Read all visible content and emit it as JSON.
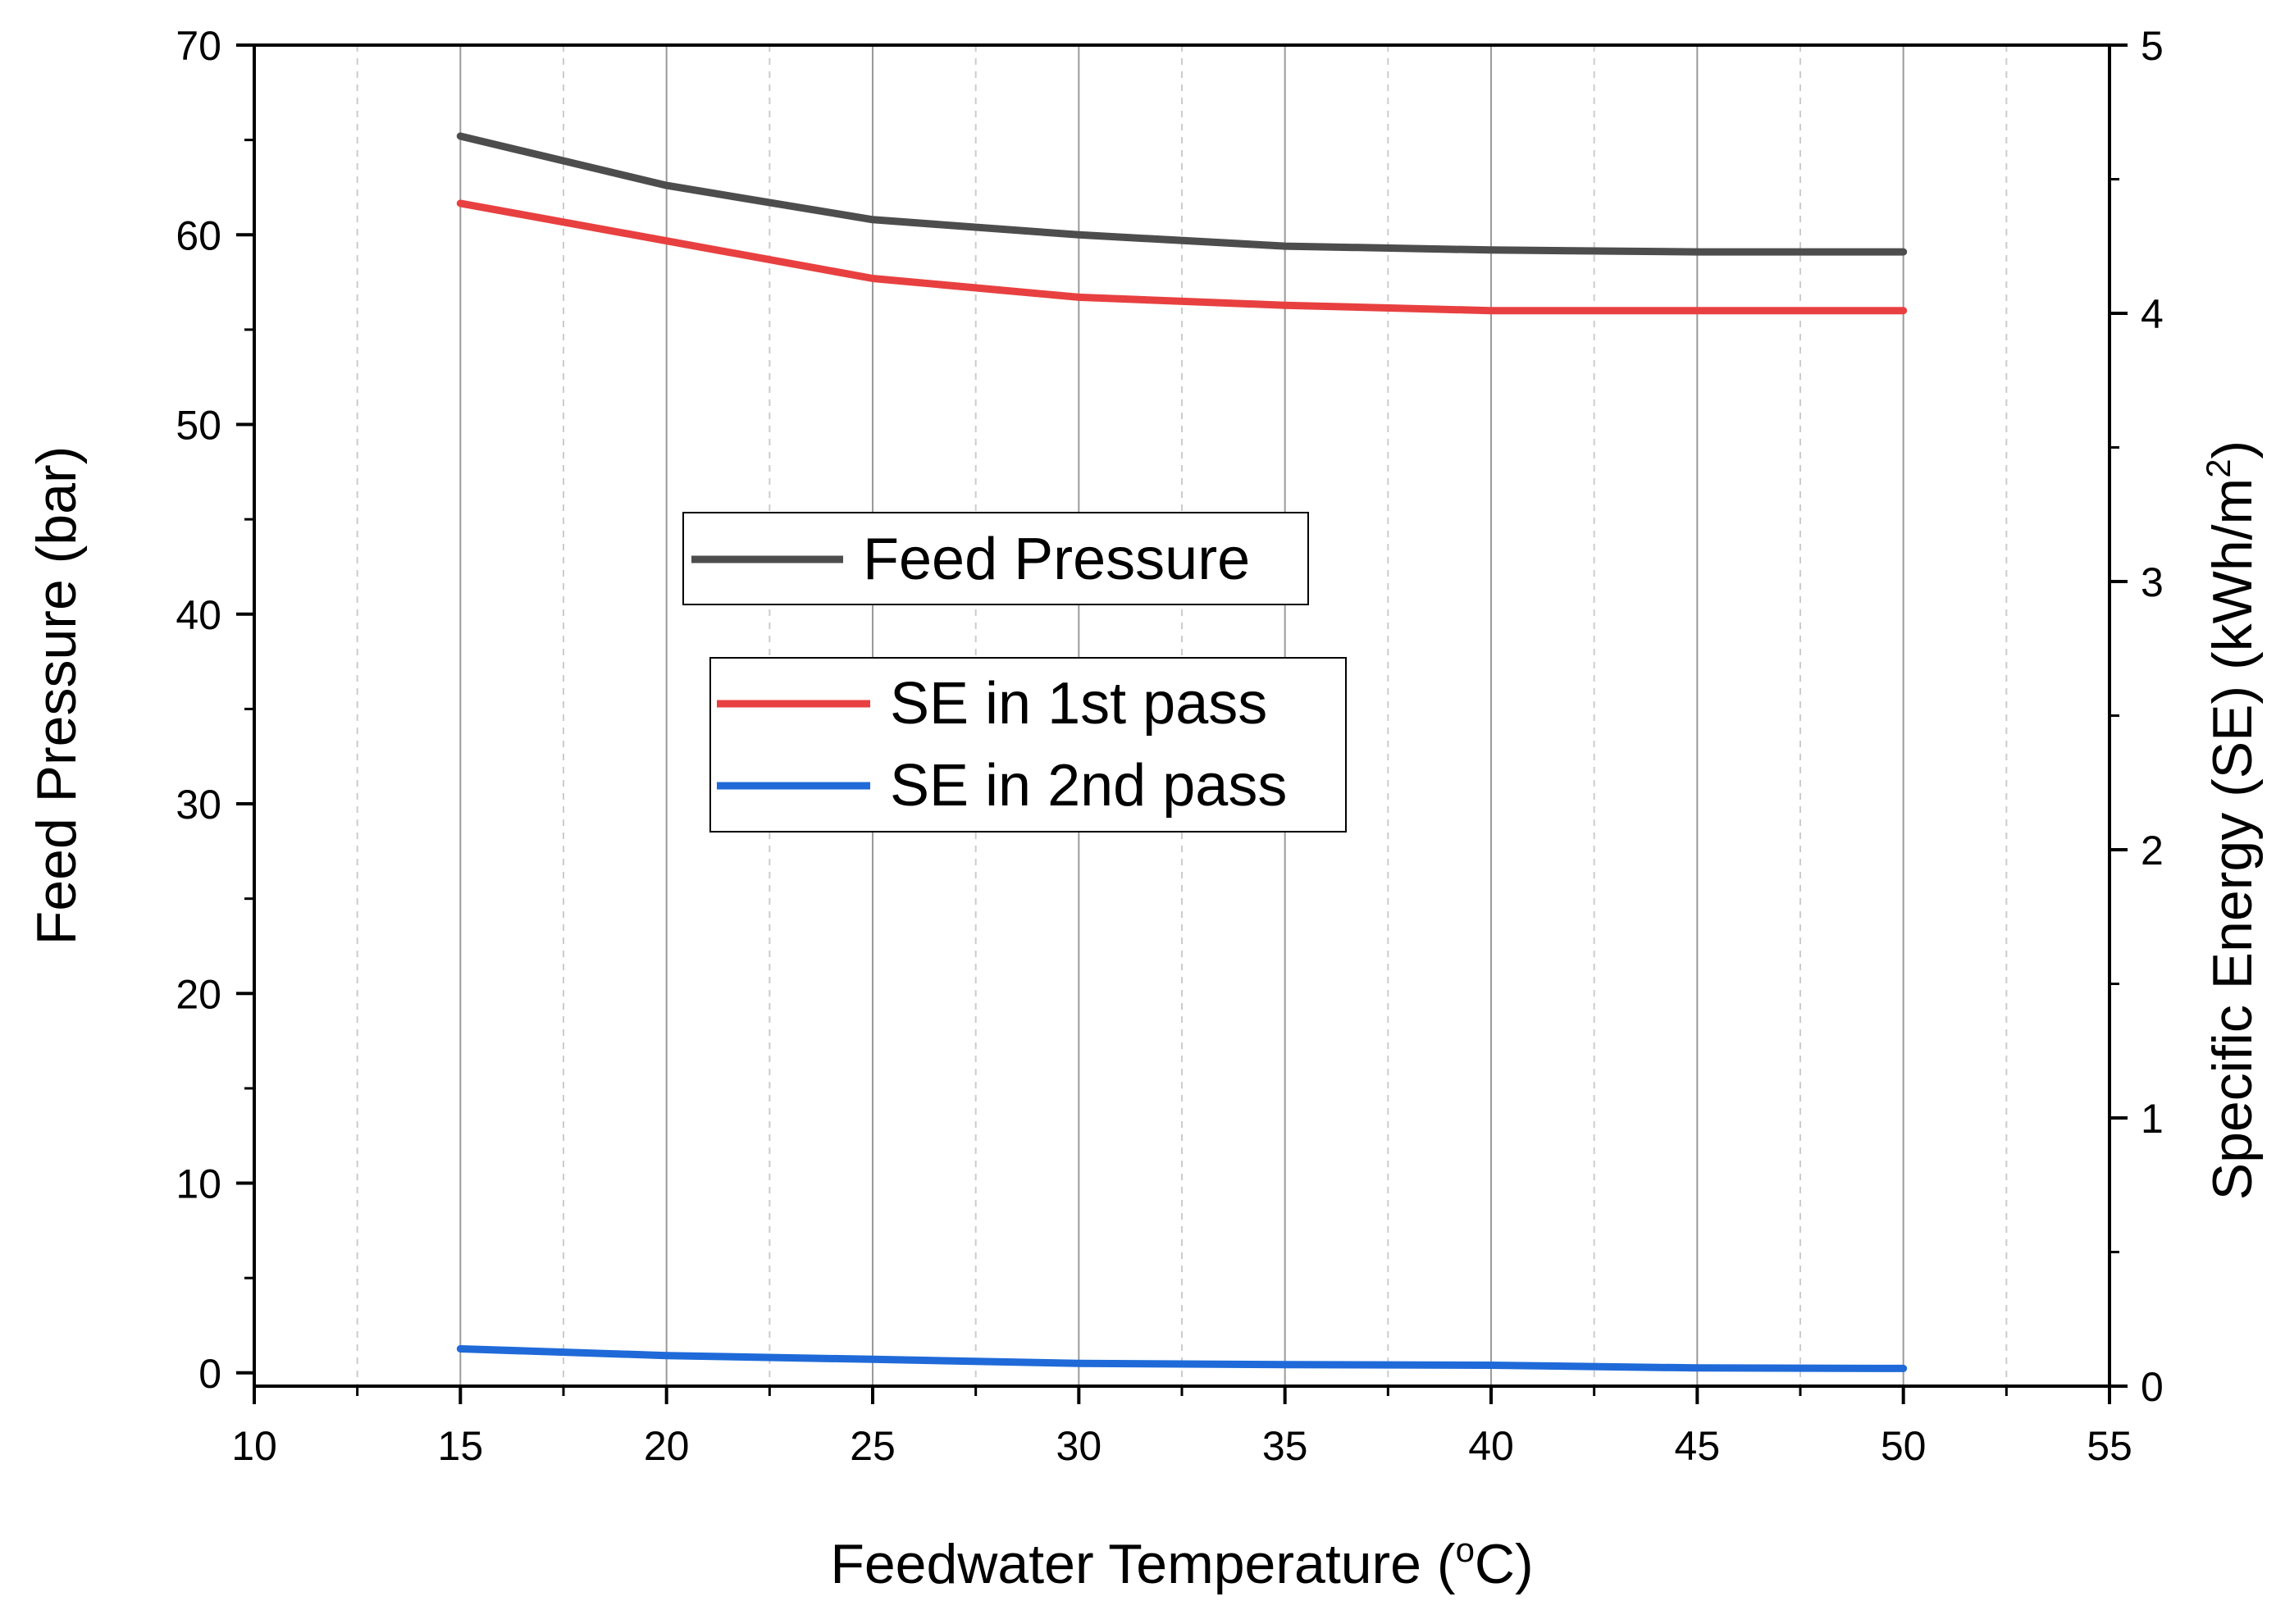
{
  "chart_data": {
    "type": "line",
    "title": "",
    "xlabel": "Feedwater Temperature",
    "xlabel_unit_prefix": "(",
    "xlabel_unit_sup": "o",
    "xlabel_unit_rest": "C)",
    "ylabel_left": "Feed Pressure (bar)",
    "ylabel_right": "Specific Energy (SE) (kWh/m",
    "ylabel_right_sup": "2",
    "ylabel_right_close": ")",
    "xlim": [
      10,
      55
    ],
    "ylim_left": [
      -0.7,
      70
    ],
    "ylim_right": [
      0,
      5
    ],
    "xticks": [
      "10",
      "15",
      "20",
      "25",
      "30",
      "35",
      "40",
      "45",
      "50",
      "55"
    ],
    "yticks_left": [
      "0",
      "10",
      "20",
      "30",
      "40",
      "50",
      "60",
      "70"
    ],
    "yticks_right": [
      "0",
      "1",
      "2",
      "3",
      "4",
      "5"
    ],
    "x": [
      15,
      20,
      25,
      30,
      35,
      40,
      45,
      50
    ],
    "series": [
      {
        "name": "Feed Pressure",
        "axis": "left",
        "color": "#4d4d4d",
        "values": [
          65.2,
          62.6,
          60.8,
          60.0,
          59.4,
          59.2,
          59.1,
          59.1
        ]
      },
      {
        "name": "SE in 1st pass",
        "axis": "right",
        "color": "#e84040",
        "values": [
          4.41,
          4.27,
          4.13,
          4.06,
          4.03,
          4.01,
          4.01,
          4.01
        ]
      },
      {
        "name": "SE in 2nd pass",
        "axis": "right",
        "color": "#1f6ad8",
        "values": [
          0.139,
          0.114,
          0.1,
          0.085,
          0.08,
          0.078,
          0.068,
          0.066
        ]
      }
    ],
    "grid": "vertical",
    "legend_groups": [
      [
        "Feed Pressure"
      ],
      [
        "SE in 1st pass",
        "SE in 2nd pass"
      ]
    ]
  }
}
